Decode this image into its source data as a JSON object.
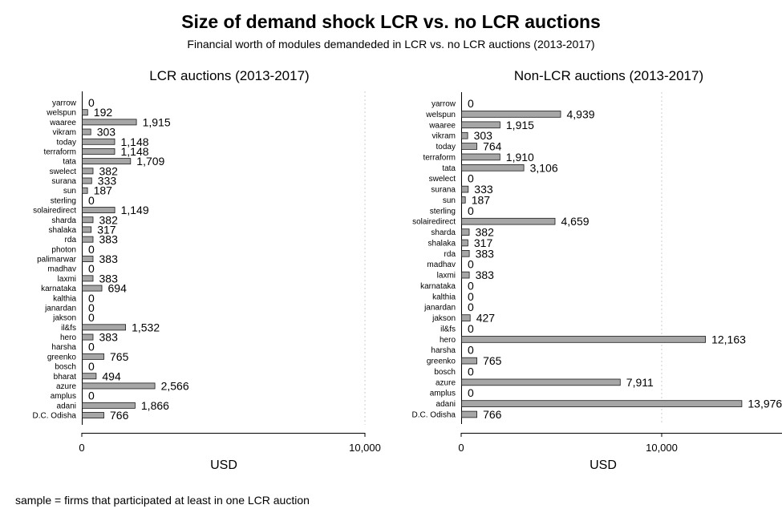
{
  "title": "Size of demand shock LCR vs. no LCR auctions",
  "subtitle": "Financial worth of modules demandeded in LCR vs. no LCR auctions (2013-2017)",
  "note": "sample = firms that participated at least in one LCR auction",
  "colors": {
    "bar_fill": "#a6a6a6",
    "bar_stroke": "#1a1a1a",
    "axis": "#000000",
    "gridline": "#cccccc"
  },
  "chart_data": [
    {
      "type": "bar",
      "orientation": "horizontal",
      "title": "LCR auctions (2013-2017)",
      "xlabel": "USD",
      "xlim": [
        0,
        10000
      ],
      "x_ticks": [
        0,
        10000
      ],
      "x_tick_labels": [
        "0",
        "10,000"
      ],
      "categories": [
        "yarrow",
        "welspun",
        "waaree",
        "vikram",
        "today",
        "terraform",
        "tata",
        "swelect",
        "surana",
        "sun",
        "sterling",
        "solairedirect",
        "sharda",
        "shalaka",
        "rda",
        "photon",
        "palimarwar",
        "madhav",
        "laxmi",
        "karnataka",
        "kalthia",
        "janardan",
        "jakson",
        "il&fs",
        "hero",
        "harsha",
        "greenko",
        "bosch",
        "bharat",
        "azure",
        "amplus",
        "adani",
        "D.C. Odisha"
      ],
      "values": [
        0,
        192,
        1915,
        303,
        1148,
        1148,
        1709,
        382,
        333,
        187,
        0,
        1149,
        382,
        317,
        383,
        0,
        383,
        0,
        383,
        694,
        0,
        0,
        0,
        1532,
        383,
        0,
        765,
        0,
        494,
        2566,
        0,
        1866,
        766
      ],
      "value_labels": [
        "0",
        "192",
        "1,915",
        "303",
        "1,148",
        "1,148",
        "1,709",
        "382",
        "333",
        "187",
        "0",
        "1,149",
        "382",
        "317",
        "383",
        "0",
        "383",
        "0",
        "383",
        "694",
        "0",
        "0",
        "0",
        "1,532",
        "383",
        "0",
        "765",
        "0",
        "494",
        "2,566",
        "0",
        "1,866",
        "766"
      ]
    },
    {
      "type": "bar",
      "orientation": "horizontal",
      "title": "Non-LCR auctions (2013-2017)",
      "xlabel": "USD",
      "xlim": [
        0,
        10000
      ],
      "x_ticks": [
        0,
        10000
      ],
      "x_tick_labels": [
        "0",
        "10,000"
      ],
      "categories": [
        "yarrow",
        "welspun",
        "waaree",
        "vikram",
        "today",
        "terraform",
        "tata",
        "swelect",
        "surana",
        "sun",
        "sterling",
        "solairedirect",
        "sharda",
        "shalaka",
        "rda",
        "madhav",
        "laxmi",
        "karnataka",
        "kalthia",
        "janardan",
        "jakson",
        "il&fs",
        "hero",
        "harsha",
        "greenko",
        "bosch",
        "azure",
        "amplus",
        "adani",
        "D.C. Odisha"
      ],
      "values": [
        0,
        4939,
        1915,
        303,
        764,
        1910,
        3106,
        0,
        333,
        187,
        0,
        4659,
        382,
        317,
        383,
        0,
        383,
        0,
        0,
        0,
        427,
        0,
        12163,
        0,
        765,
        0,
        7911,
        0,
        13976,
        766
      ],
      "value_labels": [
        "0",
        "4,939",
        "1,915",
        "303",
        "764",
        "1,910",
        "3,106",
        "0",
        "333",
        "187",
        "0",
        "4,659",
        "382",
        "317",
        "383",
        "0",
        "383",
        "0",
        "0",
        "0",
        "427",
        "0",
        "12,163",
        "0",
        "765",
        "0",
        "7,911",
        "0",
        "13,976",
        "766"
      ]
    }
  ]
}
